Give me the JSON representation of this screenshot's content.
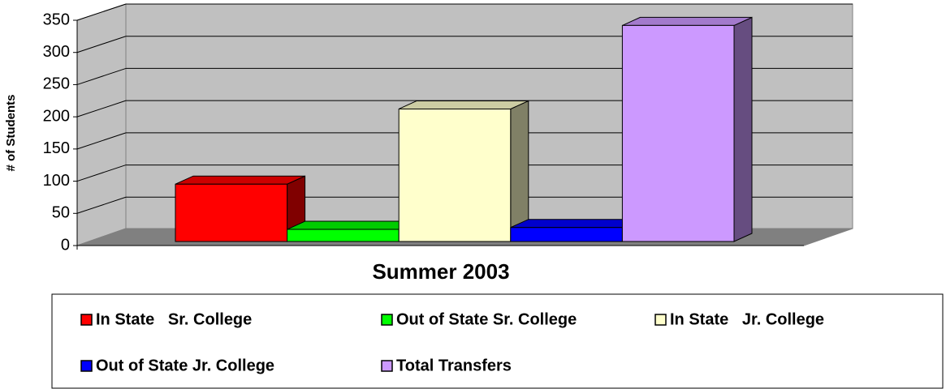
{
  "chart_data": {
    "type": "bar3d",
    "title": "Summer 2003",
    "y_label": "# of Students",
    "series": [
      {
        "name": "In State   Sr. College",
        "color": "#ff0000",
        "values": [
          90
        ]
      },
      {
        "name": "Out of State Sr. College",
        "color": "#00ff00",
        "values": [
          19
        ]
      },
      {
        "name": "In State   Jr. College",
        "color": "#ffffcc",
        "values": [
          208
        ]
      },
      {
        "name": "Out of State Jr. College",
        "color": "#0000ff",
        "values": [
          22
        ]
      },
      {
        "name": "Total Transfers",
        "color": "#cc99ff",
        "values": [
          339
        ]
      }
    ],
    "ylim": [
      0,
      350
    ],
    "yticks": [
      0,
      50,
      100,
      150,
      200,
      250,
      300,
      350
    ],
    "grid": true,
    "legend": "bottom"
  }
}
